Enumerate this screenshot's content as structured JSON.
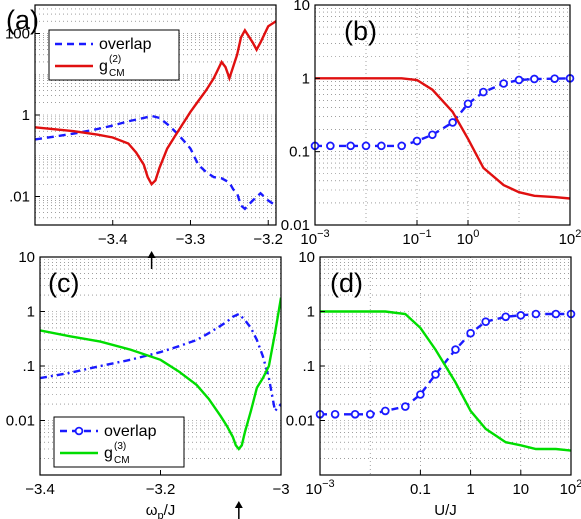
{
  "chart_data": [
    {
      "panel": "(a)",
      "type": "line",
      "xlim": [
        -3.5,
        -3.19
      ],
      "yscale": "log",
      "ylim": [
        0.002,
        500
      ],
      "yticks": [
        {
          "v": 0.01,
          "label": ".01"
        },
        {
          "v": 1,
          "label": "1"
        },
        {
          "v": 100,
          "label": "100"
        }
      ],
      "xticks": [
        {
          "v": -3.4,
          "label": "−3.4"
        },
        {
          "v": -3.3,
          "label": "−3.3"
        },
        {
          "v": -3.2,
          "label": "−3.2"
        }
      ],
      "xlabel": "",
      "arrow_at": -3.35,
      "legend": {
        "placement": "top-left",
        "entries": [
          {
            "text": "overlap",
            "style": "dash"
          },
          {
            "text": "g",
            "sup": "(2)",
            "sub": "CM",
            "style": "solid"
          }
        ]
      },
      "series": [
        {
          "name": "overlap",
          "color": "#1a1aff",
          "style": "dash",
          "x": [
            -3.5,
            -3.45,
            -3.42,
            -3.4,
            -3.38,
            -3.36,
            -3.35,
            -3.34,
            -3.33,
            -3.32,
            -3.31,
            -3.3,
            -3.29,
            -3.28,
            -3.27,
            -3.26,
            -3.25,
            -3.245,
            -3.24,
            -3.235,
            -3.23,
            -3.22,
            -3.21,
            -3.2,
            -3.19
          ],
          "y": [
            0.25,
            0.35,
            0.45,
            0.55,
            0.7,
            0.85,
            0.95,
            0.85,
            0.6,
            0.4,
            0.25,
            0.15,
            0.06,
            0.04,
            0.03,
            0.028,
            0.022,
            0.015,
            0.012,
            0.006,
            0.005,
            0.008,
            0.012,
            0.008,
            0.006
          ]
        },
        {
          "name": "g_CM^(2)",
          "color": "#e01010",
          "style": "solid",
          "x": [
            -3.5,
            -3.45,
            -3.42,
            -3.4,
            -3.38,
            -3.37,
            -3.36,
            -3.355,
            -3.35,
            -3.345,
            -3.34,
            -3.33,
            -3.32,
            -3.31,
            -3.3,
            -3.29,
            -3.28,
            -3.27,
            -3.26,
            -3.255,
            -3.25,
            -3.24,
            -3.235,
            -3.23,
            -3.22,
            -3.215,
            -3.21,
            -3.2,
            -3.19
          ],
          "y": [
            0.5,
            0.4,
            0.33,
            0.28,
            0.2,
            0.12,
            0.06,
            0.03,
            0.02,
            0.025,
            0.05,
            0.15,
            0.3,
            0.6,
            1.2,
            2.2,
            4,
            8,
            20,
            15,
            8,
            30,
            80,
            120,
            60,
            40,
            60,
            150,
            200
          ]
        }
      ]
    },
    {
      "panel": "(b)",
      "type": "line",
      "xscale": "log",
      "xlim": [
        0.001,
        100
      ],
      "yscale": "log",
      "ylim": [
        0.01,
        10
      ],
      "yticks": [
        {
          "v": 0.01,
          "label": "0.01"
        },
        {
          "v": 0.1,
          "label": "0.1"
        },
        {
          "v": 1,
          "label": "1"
        },
        {
          "v": 10,
          "label": "10"
        }
      ],
      "xticks": [
        {
          "v": 0.001,
          "label": "10",
          "exp": "−3"
        },
        {
          "v": 0.1,
          "label": "10",
          "exp": "−1"
        },
        {
          "v": 1,
          "label": "10",
          "exp": "0"
        },
        {
          "v": 100,
          "label": "10",
          "exp": "2"
        }
      ],
      "series": [
        {
          "name": "overlap",
          "color": "#1a1aff",
          "style": "dash",
          "markers": true,
          "x": [
            0.001,
            0.002,
            0.005,
            0.01,
            0.02,
            0.05,
            0.1,
            0.2,
            0.5,
            1,
            2,
            5,
            10,
            20,
            50,
            100
          ],
          "y": [
            0.12,
            0.12,
            0.12,
            0.12,
            0.12,
            0.12,
            0.14,
            0.17,
            0.25,
            0.45,
            0.65,
            0.85,
            0.95,
            0.98,
            0.99,
            1.0
          ]
        },
        {
          "name": "g_CM^(2)",
          "color": "#e01010",
          "style": "solid",
          "x": [
            0.001,
            0.002,
            0.005,
            0.01,
            0.02,
            0.05,
            0.1,
            0.2,
            0.5,
            1,
            2,
            5,
            10,
            20,
            50,
            100
          ],
          "y": [
            1.0,
            1.0,
            1.0,
            1.0,
            1.0,
            1.0,
            0.95,
            0.7,
            0.35,
            0.15,
            0.06,
            0.035,
            0.028,
            0.025,
            0.024,
            0.023
          ]
        }
      ]
    },
    {
      "panel": "(c)",
      "type": "line",
      "xlim": [
        -3.4,
        -3.0
      ],
      "yscale": "log",
      "ylim": [
        0.001,
        10
      ],
      "yticks": [
        {
          "v": 0.01,
          "label": "0.01"
        },
        {
          "v": 0.1,
          "label": ".1"
        },
        {
          "v": 1,
          "label": "1"
        },
        {
          "v": 10,
          "label": "10"
        }
      ],
      "xticks": [
        {
          "v": -3.4,
          "label": "−3.4"
        },
        {
          "v": -3.2,
          "label": "−3.2"
        },
        {
          "v": -3.0,
          "label": "−3"
        }
      ],
      "xlabel": "ω",
      "xlabel_sub": "p",
      "xlabel_tail": "/J",
      "arrow_at": -3.07,
      "legend": {
        "placement": "bottom-left",
        "entries": [
          {
            "text": "overlap",
            "style": "dash",
            "marker": true
          },
          {
            "text": "g",
            "sup": "(3)",
            "sub": "CM",
            "style": "solid"
          }
        ]
      },
      "series": [
        {
          "name": "overlap",
          "color": "#1a1aff",
          "style": "dashdot",
          "x": [
            -3.4,
            -3.35,
            -3.3,
            -3.25,
            -3.2,
            -3.17,
            -3.14,
            -3.12,
            -3.1,
            -3.09,
            -3.08,
            -3.07,
            -3.06,
            -3.05,
            -3.04,
            -3.03,
            -3.02,
            -3.01,
            -3.0
          ],
          "y": [
            0.06,
            0.075,
            0.1,
            0.13,
            0.18,
            0.23,
            0.3,
            0.4,
            0.55,
            0.65,
            0.8,
            0.9,
            0.7,
            0.5,
            0.3,
            0.15,
            0.06,
            0.015,
            0.02
          ]
        },
        {
          "name": "g_CM^(3)",
          "color": "#00dd00",
          "style": "solid",
          "x": [
            -3.4,
            -3.35,
            -3.3,
            -3.25,
            -3.2,
            -3.17,
            -3.14,
            -3.12,
            -3.1,
            -3.09,
            -3.08,
            -3.075,
            -3.07,
            -3.065,
            -3.06,
            -3.05,
            -3.04,
            -3.03,
            -3.02,
            -3.01,
            -3.0
          ],
          "y": [
            0.45,
            0.35,
            0.28,
            0.2,
            0.13,
            0.08,
            0.045,
            0.025,
            0.012,
            0.008,
            0.005,
            0.0035,
            0.003,
            0.0035,
            0.006,
            0.015,
            0.04,
            0.06,
            0.1,
            0.4,
            1.8
          ]
        }
      ]
    },
    {
      "panel": "(d)",
      "type": "line",
      "xscale": "log",
      "xlim": [
        0.001,
        100
      ],
      "yscale": "log",
      "ylim": [
        0.001,
        10
      ],
      "yticks": [
        {
          "v": 0.01,
          "label": "0.01"
        },
        {
          "v": 0.1,
          "label": ".1"
        },
        {
          "v": 1,
          "label": "1"
        },
        {
          "v": 10,
          "label": "10"
        }
      ],
      "xticks": [
        {
          "v": 0.001,
          "label": "10",
          "exp": "−3"
        },
        {
          "v": 0.1,
          "label": "0.1"
        },
        {
          "v": 1,
          "label": "1"
        },
        {
          "v": 10,
          "label": "10"
        },
        {
          "v": 100,
          "label": "10",
          "exp": "2"
        }
      ],
      "xlabel": "U/J",
      "series": [
        {
          "name": "overlap",
          "color": "#1a1aff",
          "style": "dash",
          "markers": true,
          "x": [
            0.001,
            0.002,
            0.005,
            0.01,
            0.02,
            0.05,
            0.1,
            0.2,
            0.5,
            1,
            2,
            5,
            10,
            20,
            50,
            100
          ],
          "y": [
            0.013,
            0.013,
            0.013,
            0.013,
            0.015,
            0.018,
            0.03,
            0.07,
            0.2,
            0.4,
            0.65,
            0.8,
            0.85,
            0.9,
            0.9,
            0.9
          ]
        },
        {
          "name": "g_CM^(3)",
          "color": "#00dd00",
          "style": "solid",
          "x": [
            0.001,
            0.002,
            0.005,
            0.01,
            0.02,
            0.05,
            0.1,
            0.2,
            0.5,
            1,
            2,
            5,
            10,
            20,
            50,
            100
          ],
          "y": [
            1.0,
            1.0,
            1.0,
            1.0,
            1.0,
            0.9,
            0.5,
            0.2,
            0.05,
            0.015,
            0.007,
            0.004,
            0.0035,
            0.003,
            0.003,
            0.0028
          ]
        }
      ]
    }
  ]
}
